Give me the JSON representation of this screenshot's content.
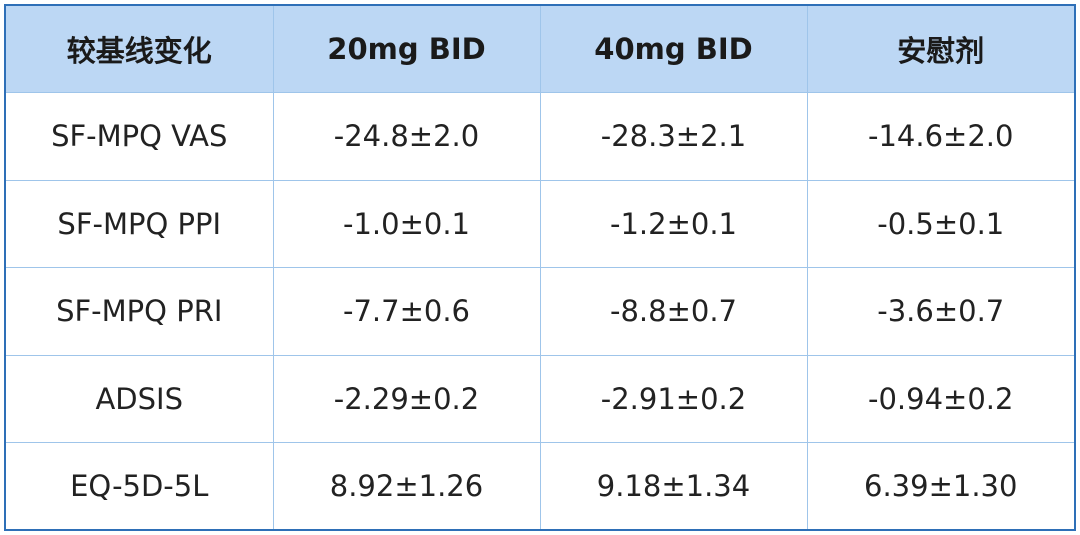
{
  "table": {
    "header": [
      "较基线变化",
      "20mg BID",
      "40mg BID",
      "安慰剂"
    ],
    "rows": [
      [
        "SF-MPQ VAS",
        "-24.8±2.0",
        "-28.3±2.1",
        "-14.6±2.0"
      ],
      [
        "SF-MPQ PPI",
        "-1.0±0.1",
        "-1.2±0.1",
        "-0.5±0.1"
      ],
      [
        "SF-MPQ PRI",
        "-7.7±0.6",
        "-8.8±0.7",
        "-3.6±0.7"
      ],
      [
        "ADSIS",
        "-2.29±0.2",
        "-2.91±0.2",
        "-0.94±0.2"
      ],
      [
        "EQ-5D-5L",
        "8.92±1.26",
        "9.18±1.34",
        "6.39±1.30"
      ]
    ]
  }
}
